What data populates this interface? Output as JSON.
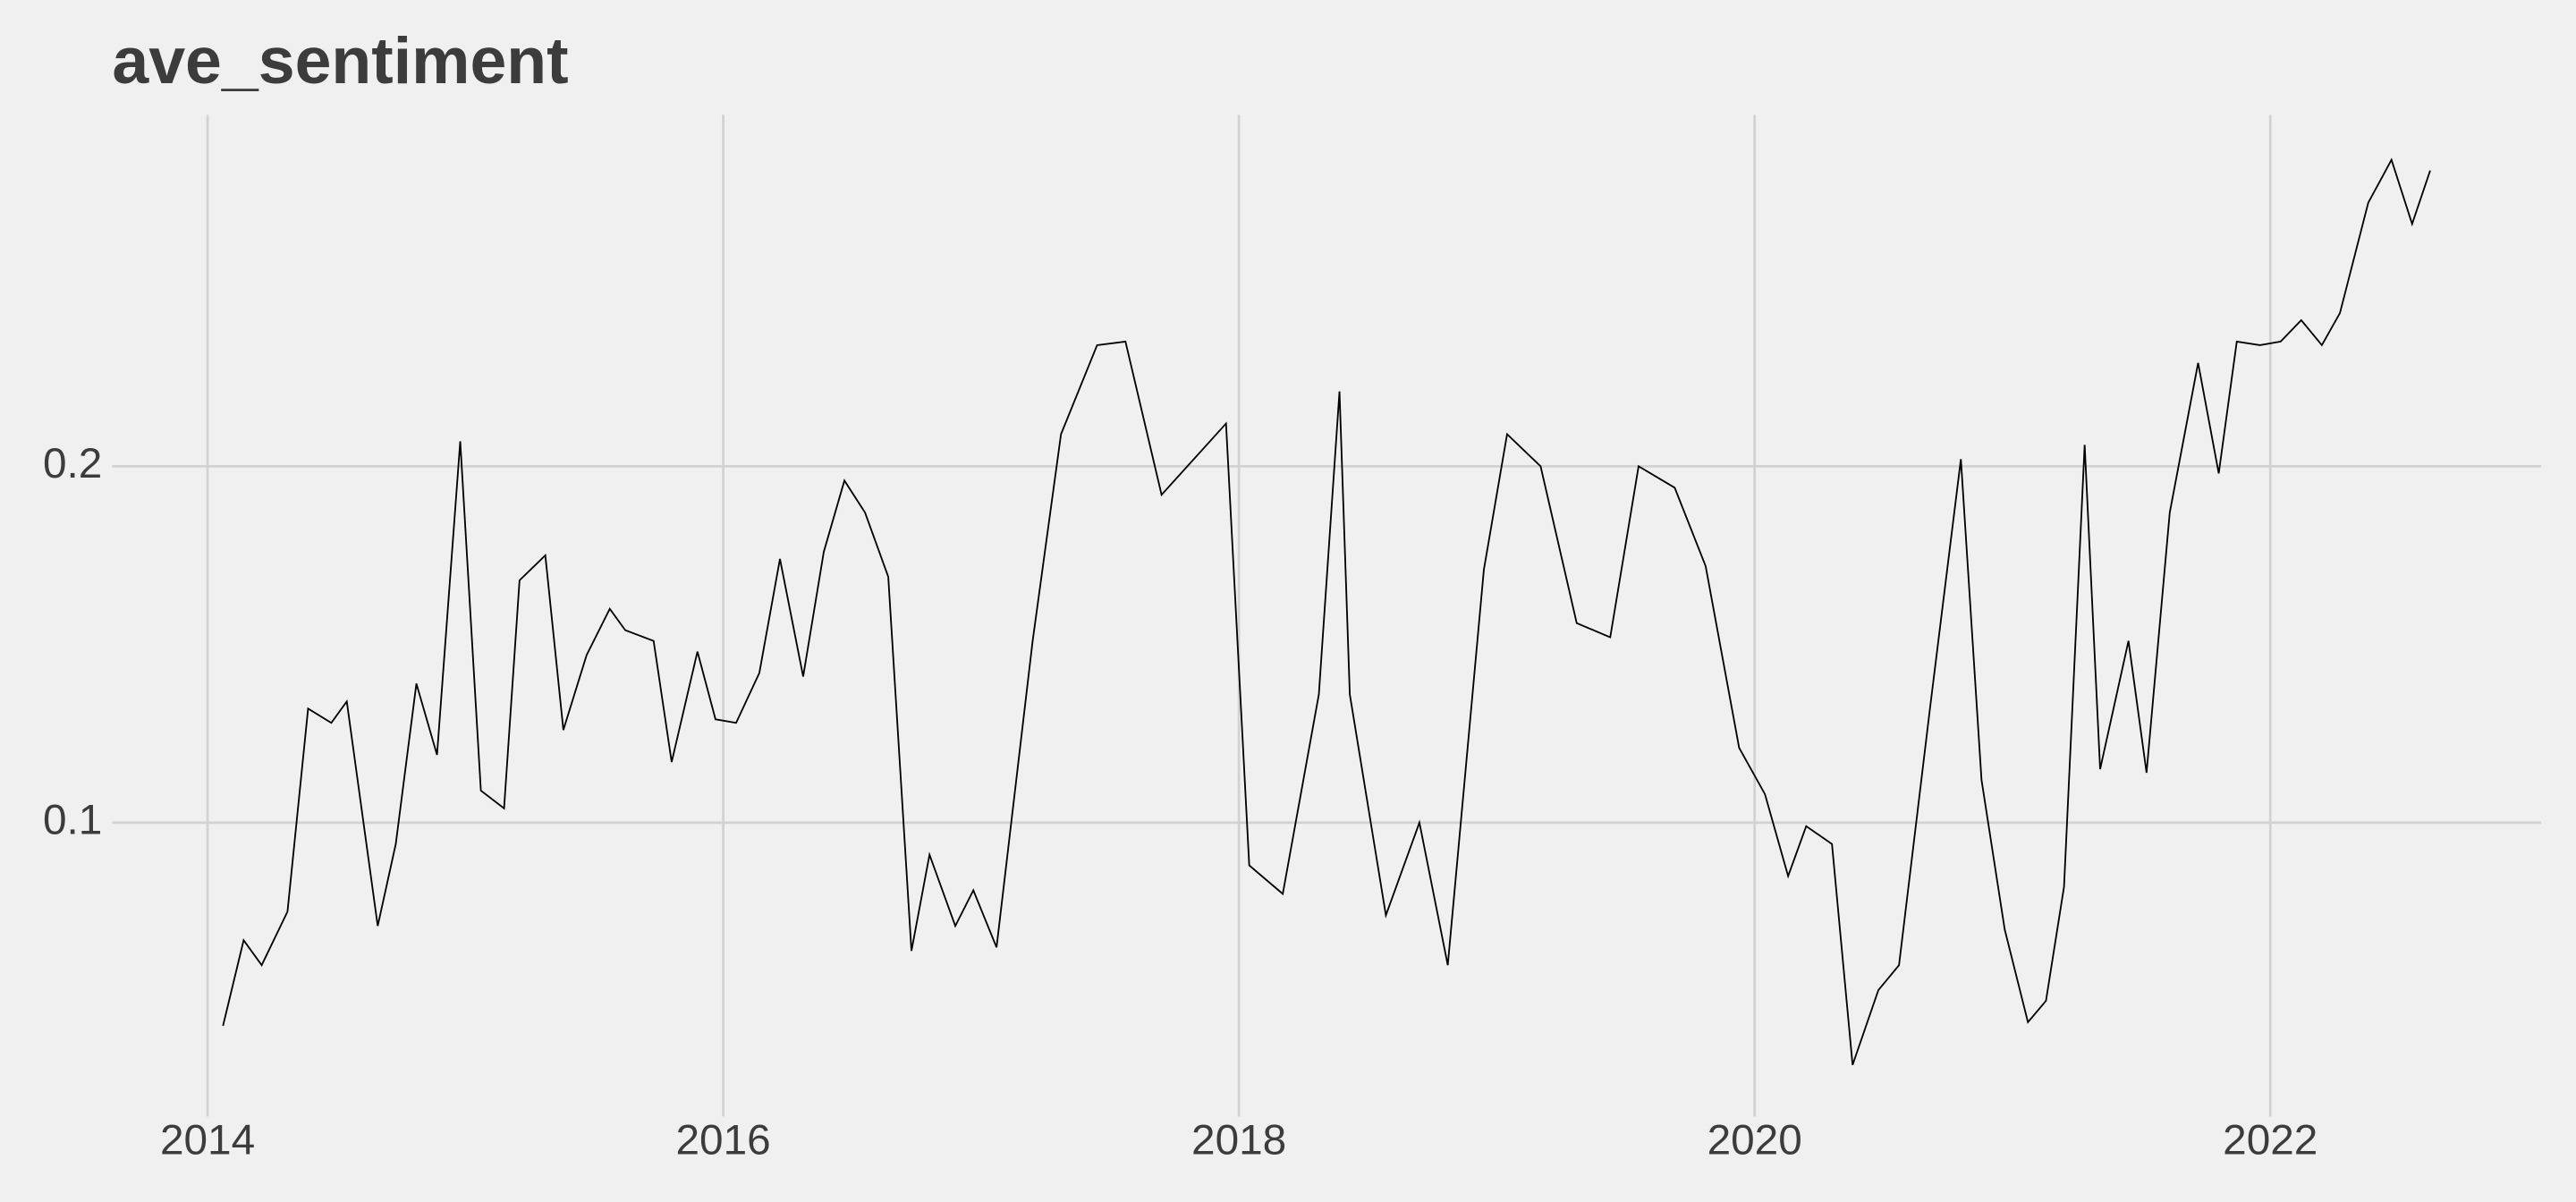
{
  "chart_data": {
    "type": "line",
    "title": "ave_sentiment",
    "x": [
      2014.06,
      2014.14,
      2014.21,
      2014.31,
      2014.39,
      2014.48,
      2014.54,
      2014.66,
      2014.73,
      2014.81,
      2014.89,
      2014.98,
      2015.06,
      2015.15,
      2015.21,
      2015.31,
      2015.38,
      2015.47,
      2015.56,
      2015.62,
      2015.73,
      2015.8,
      2015.9,
      2015.97,
      2016.05,
      2016.14,
      2016.22,
      2016.31,
      2016.39,
      2016.47,
      2016.55,
      2016.64,
      2016.73,
      2016.8,
      2016.9,
      2016.97,
      2017.06,
      2017.2,
      2017.31,
      2017.45,
      2017.56,
      2017.7,
      2017.95,
      2018.04,
      2018.17,
      2018.31,
      2018.39,
      2018.43,
      2018.57,
      2018.7,
      2018.81,
      2018.95,
      2019.04,
      2019.17,
      2019.31,
      2019.44,
      2019.55,
      2019.69,
      2019.81,
      2019.94,
      2020.04,
      2020.13,
      2020.2,
      2020.3,
      2020.38,
      2020.48,
      2020.56,
      2020.68,
      2020.8,
      2020.88,
      2020.97,
      2021.06,
      2021.13,
      2021.2,
      2021.28,
      2021.34,
      2021.45,
      2021.52,
      2021.61,
      2021.72,
      2021.8,
      2021.87,
      2021.96,
      2022.04,
      2022.12,
      2022.2,
      2022.27,
      2022.38,
      2022.47,
      2022.55,
      2022.62
    ],
    "series": [
      {
        "color": "#000000",
        "values": [
          0.043,
          0.067,
          0.06,
          0.075,
          0.132,
          0.128,
          0.134,
          0.071,
          0.094,
          0.139,
          0.119,
          0.207,
          0.109,
          0.104,
          0.168,
          0.175,
          0.126,
          0.147,
          0.16,
          0.154,
          0.151,
          0.117,
          0.148,
          0.129,
          0.128,
          0.142,
          0.174,
          0.141,
          0.176,
          0.196,
          0.187,
          0.169,
          0.064,
          0.091,
          0.071,
          0.081,
          0.065,
          0.151,
          0.209,
          0.234,
          0.235,
          0.192,
          0.212,
          0.088,
          0.08,
          0.136,
          0.221,
          0.136,
          0.074,
          0.1,
          0.06,
          0.171,
          0.209,
          0.2,
          0.156,
          0.152,
          0.2,
          0.194,
          0.172,
          0.121,
          0.108,
          0.085,
          0.099,
          0.094,
          0.032,
          0.053,
          0.06,
          0.132,
          0.202,
          0.112,
          0.07,
          0.044,
          0.05,
          0.082,
          0.206,
          0.115,
          0.151,
          0.114,
          0.187,
          0.229,
          0.198,
          0.235,
          0.234,
          0.235,
          0.241,
          0.234,
          0.243,
          0.274,
          0.286,
          0.268,
          0.283
        ]
      }
    ],
    "xlim": [
      2013.63,
      2023.05
    ],
    "xticks": [
      2014,
      2016,
      2018,
      2020,
      2022
    ],
    "ylim": [
      0.0175,
      0.2986
    ],
    "yticks": [
      0.1,
      0.2
    ],
    "grid": true
  }
}
